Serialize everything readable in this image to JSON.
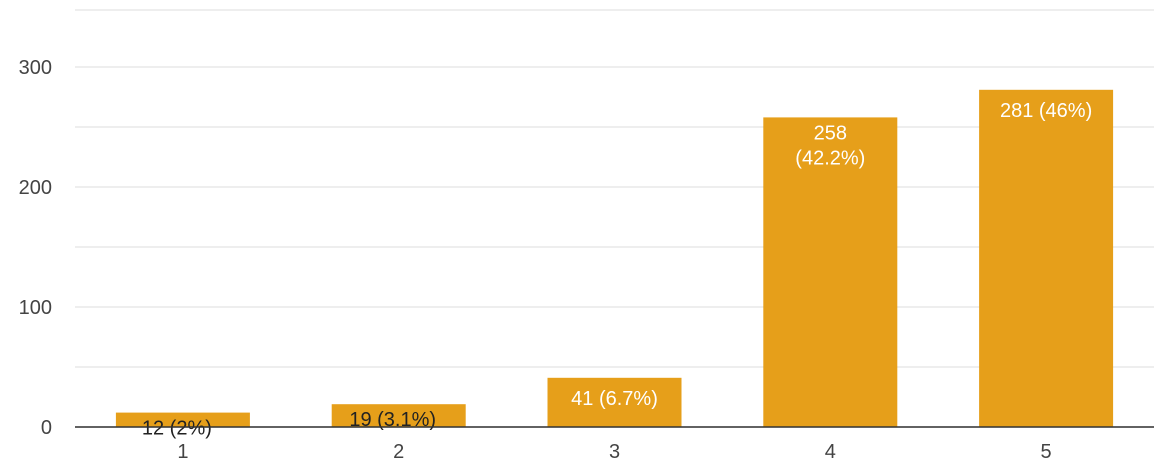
{
  "chart_data": {
    "type": "bar",
    "categories": [
      "1",
      "2",
      "3",
      "4",
      "5"
    ],
    "values": [
      12,
      19,
      41,
      258,
      281
    ],
    "data_labels": [
      "12 (2%)",
      "19 (3.1%)",
      "41 (6.7%)",
      "258 (42.2%)",
      "281 (46%)"
    ],
    "y_ticks": [
      "0",
      "100",
      "200",
      "300"
    ],
    "ylim": [
      0,
      340
    ],
    "grid": true,
    "legend": "none",
    "colors": {
      "bar": "#E69F1A",
      "grid": "#E8E8E8",
      "axis": "#333333",
      "label_inside": "#FFFFFF",
      "label_outside": "#222222"
    }
  }
}
